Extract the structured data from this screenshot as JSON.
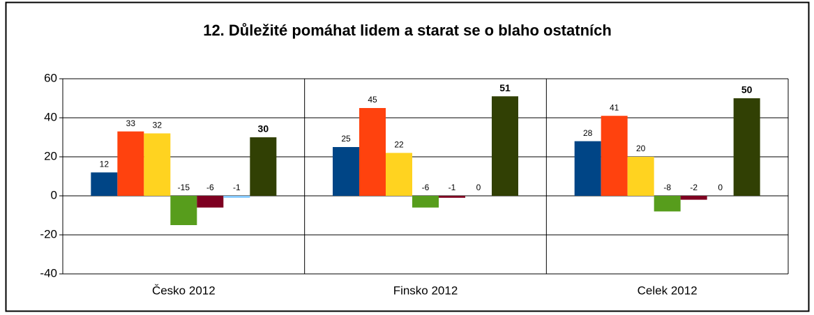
{
  "chart_data": {
    "type": "bar",
    "title": "12. Důležité pomáhat lidem a starat se o blaho ostatních",
    "categories": [
      "Česko 2012",
      "Finsko 2012",
      "Celek 2012"
    ],
    "series": [
      {
        "color": "#004586",
        "values": [
          12,
          25,
          28
        ]
      },
      {
        "color": "#ff420e",
        "values": [
          33,
          45,
          41
        ]
      },
      {
        "color": "#ffd320",
        "values": [
          32,
          22,
          20
        ]
      },
      {
        "color": "#579d1c",
        "values": [
          -15,
          -6,
          -8
        ]
      },
      {
        "color": "#7e0021",
        "values": [
          -6,
          -1,
          -2
        ]
      },
      {
        "color": "#83caff",
        "values": [
          -1,
          0,
          0
        ]
      },
      {
        "color": "#314004",
        "values": [
          30,
          51,
          50
        ],
        "label_color": "#ff0000",
        "label_bold": true
      }
    ],
    "ylim": [
      -40,
      60
    ],
    "yticks": [
      -40,
      -20,
      0,
      20,
      40,
      60
    ],
    "grid": true
  }
}
